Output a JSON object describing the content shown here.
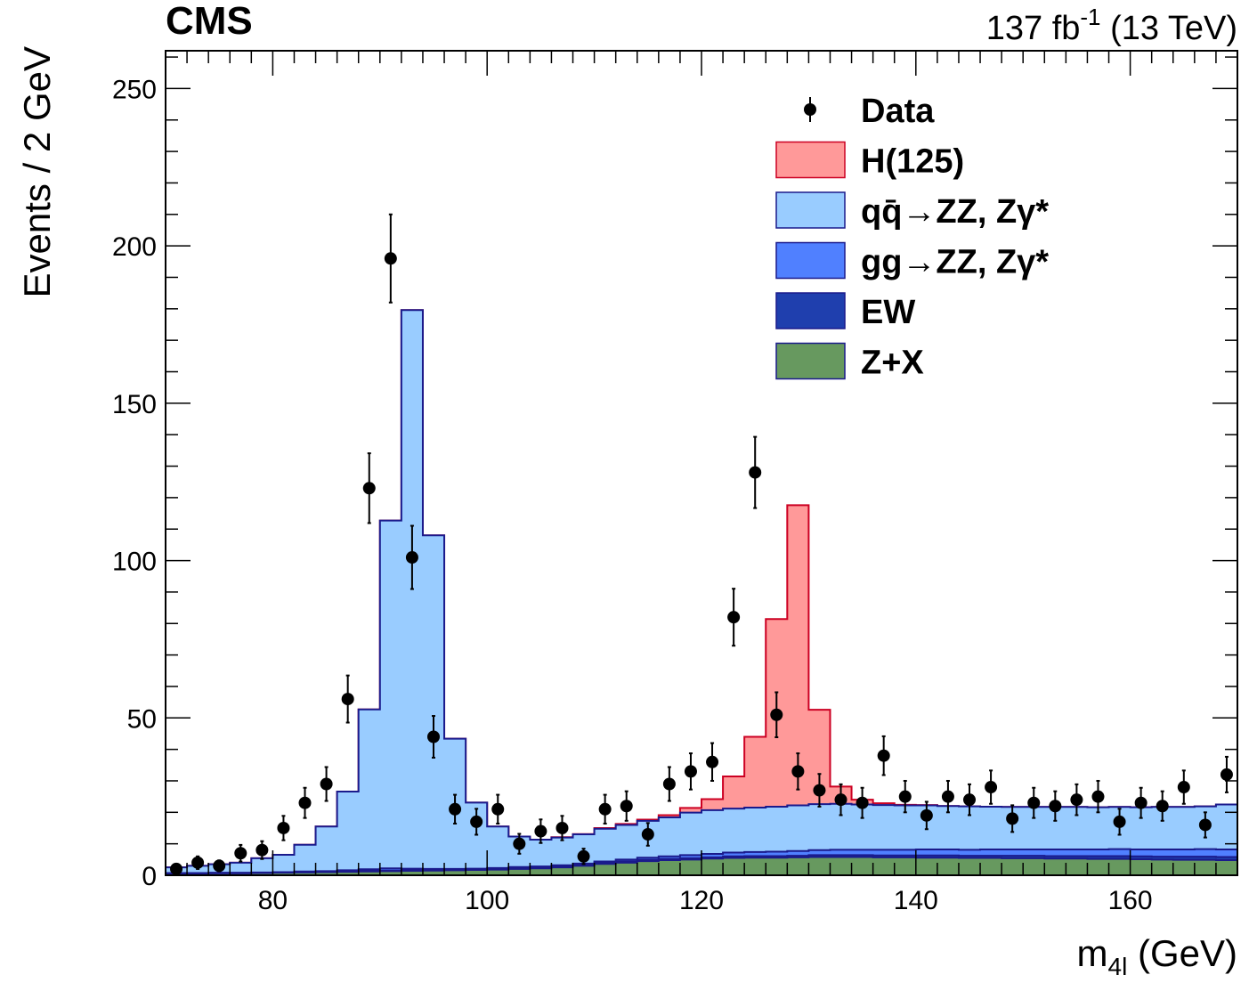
{
  "header": {
    "experiment": "CMS",
    "lumi_value": "137 fb",
    "lumi_exp": "-1",
    "energy": " (13 TeV)"
  },
  "chart_data": {
    "type": "histogram",
    "xlabel": "m",
    "xlabel_sub": "4l",
    "xlabel_unit": " (GeV)",
    "ylabel": "Events / 2 GeV",
    "xlim": [
      70,
      170
    ],
    "ylim": [
      0,
      262
    ],
    "bin_width": 2,
    "x_ticks": [
      80,
      100,
      120,
      140,
      160
    ],
    "y_ticks": [
      0,
      50,
      100,
      150,
      200,
      250
    ],
    "bin_edges": [
      70,
      72,
      74,
      76,
      78,
      80,
      82,
      84,
      86,
      88,
      90,
      92,
      94,
      96,
      98,
      100,
      102,
      104,
      106,
      108,
      110,
      112,
      114,
      116,
      118,
      120,
      122,
      124,
      126,
      128,
      130,
      132,
      134,
      136,
      138,
      140,
      142,
      144,
      146,
      148,
      150,
      152,
      154,
      156,
      158,
      160,
      162,
      164,
      166,
      168,
      170
    ],
    "stack": [
      {
        "name": "Z+X",
        "color": "#67995f",
        "values": [
          0.5,
          0.5,
          0.6,
          0.6,
          0.7,
          0.8,
          0.9,
          1.0,
          1.1,
          1.2,
          1.3,
          1.4,
          1.5,
          1.6,
          1.7,
          1.8,
          2.0,
          2.2,
          2.5,
          3.0,
          3.6,
          4.0,
          4.5,
          4.8,
          5.0,
          5.3,
          5.5,
          5.6,
          5.6,
          5.7,
          5.8,
          5.8,
          5.8,
          5.7,
          5.7,
          5.6,
          5.6,
          5.5,
          5.5,
          5.4,
          5.4,
          5.3,
          5.3,
          5.2,
          5.2,
          5.1,
          5.0,
          4.9,
          4.9,
          4.8
        ]
      },
      {
        "name": "EW",
        "color": "#1f3fae",
        "values": [
          0.1,
          0.1,
          0.1,
          0.1,
          0.1,
          0.1,
          0.1,
          0.1,
          0.2,
          0.2,
          0.2,
          0.2,
          0.2,
          0.2,
          0.2,
          0.3,
          0.3,
          0.3,
          0.3,
          0.3,
          0.3,
          0.4,
          0.4,
          0.4,
          0.4,
          0.4,
          0.5,
          0.5,
          0.5,
          0.5,
          0.6,
          0.6,
          0.6,
          0.6,
          0.6,
          0.7,
          0.7,
          0.7,
          0.7,
          0.8,
          0.8,
          0.8,
          0.8,
          0.9,
          0.9,
          0.9,
          0.9,
          1.0,
          1.0,
          1.0
        ]
      },
      {
        "name": "gg→ZZ, Zγ*",
        "color": "#5080ff",
        "values": [
          0.1,
          0.1,
          0.1,
          0.1,
          0.1,
          0.1,
          0.2,
          0.2,
          0.3,
          0.5,
          0.7,
          0.5,
          0.3,
          0.2,
          0.2,
          0.2,
          0.3,
          0.3,
          0.4,
          0.4,
          0.5,
          0.6,
          0.7,
          0.8,
          1.0,
          1.1,
          1.2,
          1.3,
          1.4,
          1.5,
          1.6,
          1.7,
          1.7,
          1.8,
          1.8,
          1.9,
          1.9,
          1.9,
          2.0,
          2.0,
          2.0,
          2.1,
          2.1,
          2.1,
          2.2,
          2.2,
          2.3,
          2.3,
          2.4,
          2.4
        ]
      },
      {
        "name": "qq̄→ZZ, Zγ*",
        "color": "#99ccff",
        "values": [
          1.8,
          2.3,
          2.7,
          3.2,
          4.5,
          5.5,
          8.5,
          14.2,
          25.0,
          50.8,
          110.5,
          177.5,
          106.0,
          41.4,
          21.0,
          13.2,
          9.7,
          8.5,
          8.8,
          9.3,
          10.4,
          11.0,
          11.7,
          12.4,
          13.5,
          13.9,
          14.0,
          14.1,
          14.3,
          14.5,
          14.6,
          14.6,
          14.4,
          14.2,
          14.1,
          14.0,
          13.8,
          13.8,
          13.6,
          13.5,
          13.5,
          13.5,
          13.5,
          13.4,
          13.4,
          13.4,
          13.5,
          13.5,
          13.6,
          14.3
        ]
      },
      {
        "name": "H(125)",
        "color": "#ff9999",
        "values": [
          0.0,
          0.0,
          0.0,
          0.0,
          0.0,
          0.0,
          0.0,
          0.0,
          0.0,
          0.0,
          0.0,
          0.0,
          0.0,
          0.0,
          0.0,
          0.0,
          0.0,
          0.0,
          0.1,
          0.1,
          0.2,
          0.3,
          0.4,
          0.7,
          1.5,
          3.5,
          10.2,
          22.5,
          59.6,
          95.4,
          30.0,
          5.5,
          1.5,
          0.6,
          0.2,
          0.1,
          0.0,
          0.0,
          0.0,
          0.0,
          0.0,
          0.0,
          0.0,
          0.0,
          0.0,
          0.0,
          0.0,
          0.0,
          0.0,
          0.0
        ]
      }
    ],
    "data": {
      "name": "Data",
      "x": [
        71,
        73,
        75,
        77,
        79,
        81,
        83,
        85,
        87,
        89,
        91,
        93,
        95,
        97,
        99,
        101,
        103,
        105,
        107,
        109,
        111,
        113,
        115,
        117,
        119,
        121,
        123,
        125,
        127,
        129,
        131,
        133,
        135,
        137,
        139,
        141,
        143,
        145,
        147,
        149,
        151,
        153,
        155,
        157,
        159,
        161,
        163,
        165,
        167,
        169
      ],
      "y": [
        2,
        4,
        3,
        7,
        8,
        15,
        23,
        29,
        56,
        123,
        196,
        101,
        44,
        21,
        17,
        21,
        10,
        14,
        15,
        6,
        21,
        22,
        13,
        29,
        33,
        36,
        82,
        128,
        51,
        33,
        27,
        24,
        23,
        38,
        25,
        19,
        25,
        24,
        28,
        18,
        23,
        22,
        24,
        25,
        17,
        23,
        22,
        28,
        16,
        32
      ]
    },
    "legend": {
      "placement": "top-right",
      "entries": [
        "Data",
        "H(125)",
        "qq̄→ZZ, Zγ*",
        "gg→ZZ, Zγ*",
        "EW",
        "Z+X"
      ]
    },
    "grid": false
  }
}
